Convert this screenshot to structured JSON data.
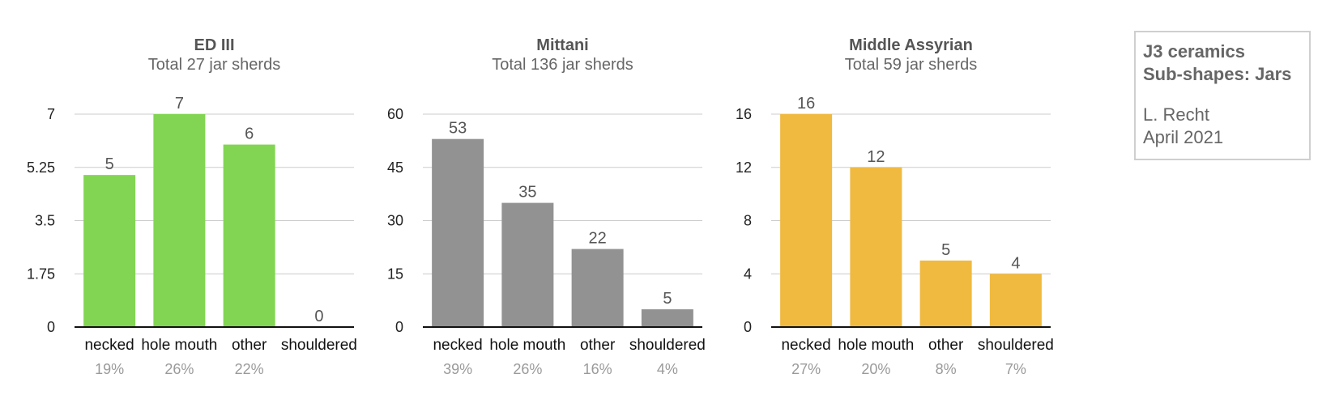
{
  "chart_data": [
    {
      "type": "bar",
      "title": "ED III",
      "subtitle": "Total 27 jar sherds",
      "categories": [
        "necked",
        "hole mouth",
        "other",
        "shouldered"
      ],
      "values": [
        5,
        7,
        6,
        0
      ],
      "percentages": [
        "19%",
        "26%",
        "22%",
        ""
      ],
      "ylim": [
        0,
        7
      ],
      "yticks": [
        "0",
        "1.75",
        "3.5",
        "5.25",
        "7"
      ],
      "color": "#82d552",
      "grid": true
    },
    {
      "type": "bar",
      "title": "Mittani",
      "subtitle": "Total 136 jar sherds",
      "categories": [
        "necked",
        "hole mouth",
        "other",
        "shouldered"
      ],
      "values": [
        53,
        35,
        22,
        5
      ],
      "percentages": [
        "39%",
        "26%",
        "16%",
        "4%"
      ],
      "ylim": [
        0,
        60
      ],
      "yticks": [
        "0",
        "15",
        "30",
        "45",
        "60"
      ],
      "color": "#929292",
      "grid": true
    },
    {
      "type": "bar",
      "title": "Middle Assyrian",
      "subtitle": "Total 59 jar sherds",
      "categories": [
        "necked",
        "hole mouth",
        "other",
        "shouldered"
      ],
      "values": [
        16,
        12,
        5,
        4
      ],
      "percentages": [
        "27%",
        "20%",
        "8%",
        "7%"
      ],
      "ylim": [
        0,
        16
      ],
      "yticks": [
        "0",
        "4",
        "8",
        "12",
        "16"
      ],
      "color": "#f0ba40",
      "grid": true
    }
  ],
  "info": {
    "line1": "J3 ceramics",
    "line2": "Sub-shapes: Jars",
    "author": "L. Recht",
    "date": "April 2021"
  }
}
